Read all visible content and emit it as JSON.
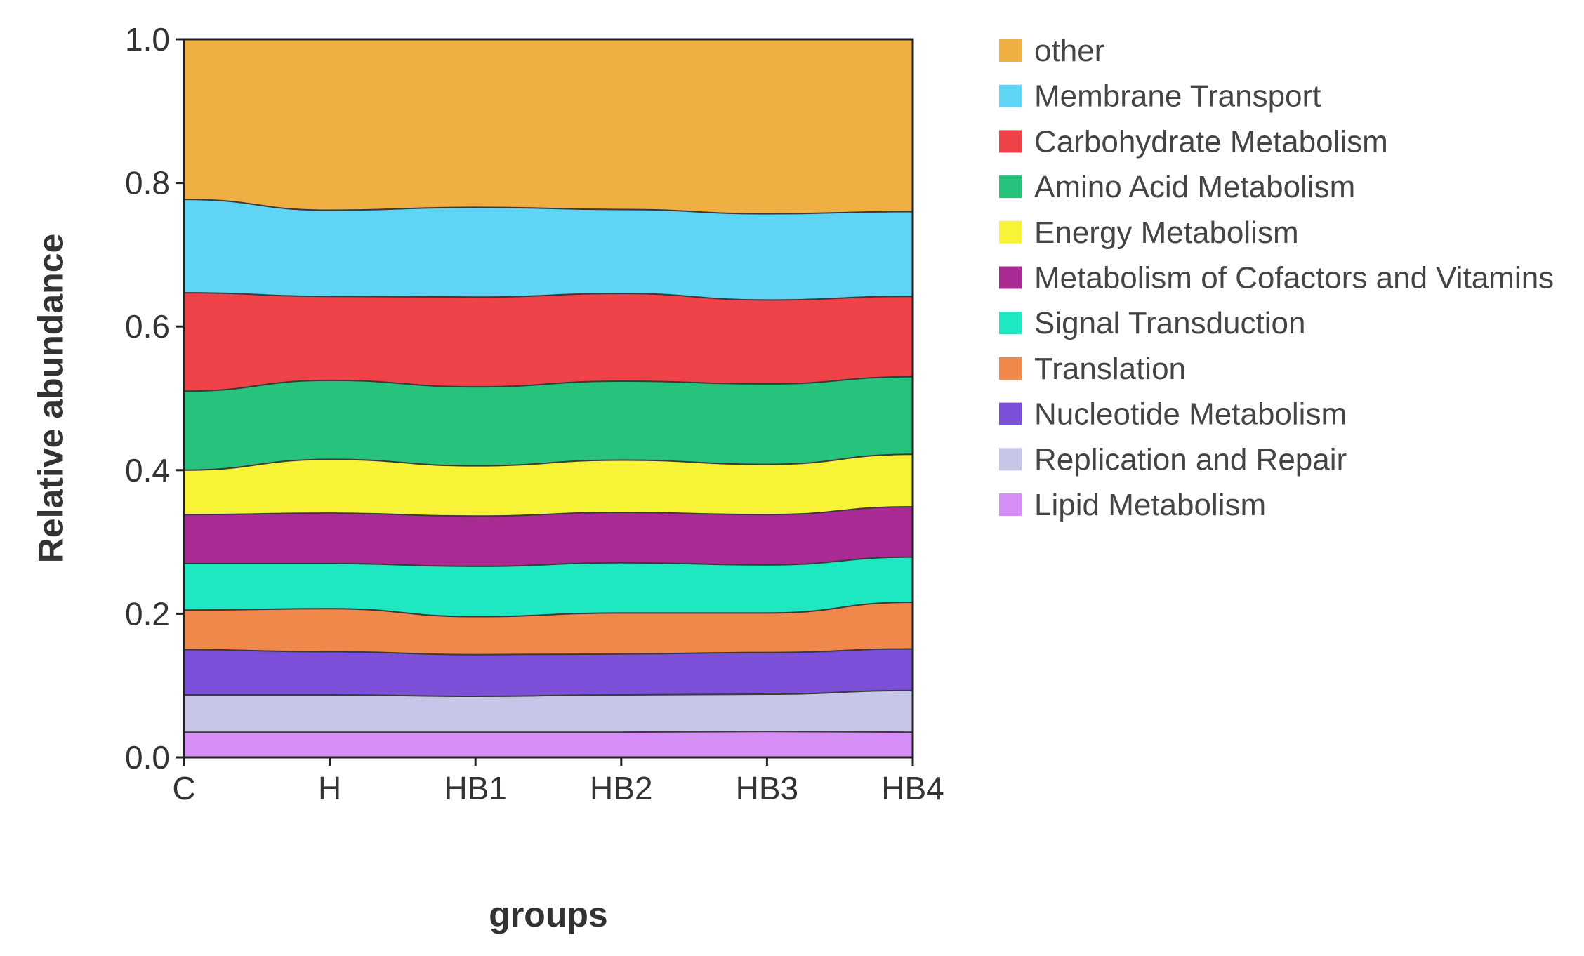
{
  "chart_data": {
    "type": "area",
    "stacked": true,
    "smooth": true,
    "xlabel": "groups",
    "ylabel": "Relative abundance",
    "ylim": [
      0,
      1
    ],
    "yticks": [
      "0.0",
      "0.2",
      "0.4",
      "0.6",
      "0.8",
      "1.0"
    ],
    "categories": [
      "C",
      "H",
      "HB1",
      "HB2",
      "HB3",
      "HB4"
    ],
    "legend_position": "right",
    "series": [
      {
        "name": "Lipid Metabolism",
        "color": "#d48ef5",
        "values": [
          0.035,
          0.035,
          0.035,
          0.035,
          0.036,
          0.035
        ]
      },
      {
        "name": "Replication and Repair",
        "color": "#c7c6e8",
        "values": [
          0.052,
          0.052,
          0.05,
          0.052,
          0.052,
          0.058
        ]
      },
      {
        "name": "Nucleotide Metabolism",
        "color": "#7c4fd8",
        "values": [
          0.063,
          0.06,
          0.058,
          0.057,
          0.058,
          0.058
        ]
      },
      {
        "name": "Translation",
        "color": "#f0884c",
        "values": [
          0.055,
          0.06,
          0.053,
          0.057,
          0.055,
          0.065
        ]
      },
      {
        "name": "Signal Transduction",
        "color": "#1de8c2",
        "values": [
          0.065,
          0.063,
          0.07,
          0.07,
          0.067,
          0.063
        ]
      },
      {
        "name": "Metabolism of Cofactors and Vitamins",
        "color": "#a92a93",
        "values": [
          0.068,
          0.07,
          0.07,
          0.07,
          0.07,
          0.07
        ]
      },
      {
        "name": "Energy Metabolism",
        "color": "#f9f337",
        "values": [
          0.062,
          0.075,
          0.07,
          0.073,
          0.07,
          0.073
        ]
      },
      {
        "name": "Amino Acid Metabolism",
        "color": "#27c37c",
        "values": [
          0.11,
          0.11,
          0.11,
          0.11,
          0.112,
          0.108
        ]
      },
      {
        "name": "Carbohydrate Metabolism",
        "color": "#ef4249",
        "values": [
          0.137,
          0.117,
          0.125,
          0.122,
          0.117,
          0.112
        ]
      },
      {
        "name": "Membrane Transport",
        "color": "#5fd4f5",
        "values": [
          0.13,
          0.12,
          0.125,
          0.117,
          0.12,
          0.118
        ]
      },
      {
        "name": "other",
        "color": "#efaf42",
        "values": [
          0.223,
          0.238,
          0.234,
          0.237,
          0.243,
          0.24
        ]
      }
    ]
  }
}
